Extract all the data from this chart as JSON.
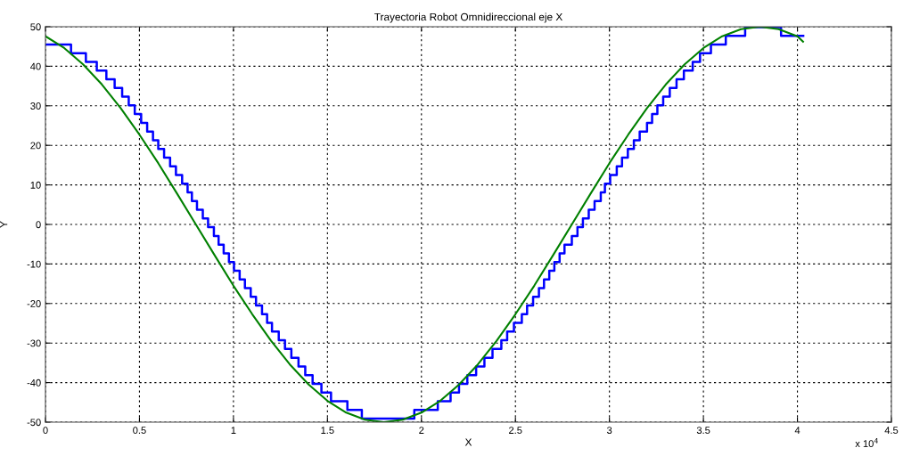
{
  "chart_data": {
    "type": "line",
    "title": "Trayectoria Robot Omnidireccional eje X",
    "xlabel": "X",
    "ylabel": "Y",
    "annotations": [
      "x 10$^{4}$"
    ],
    "xlim": [
      0,
      4.5
    ],
    "xticks": [
      0,
      0.5,
      1,
      1.5,
      2,
      2.5,
      3,
      3.5,
      4,
      4.5
    ],
    "ylim": [
      -50,
      50
    ],
    "yticks": [
      -50,
      -40,
      -30,
      -20,
      -10,
      0,
      10,
      20,
      30,
      40,
      50
    ],
    "grid": true,
    "series": [
      {
        "type": "step",
        "color": "#0000ff",
        "x": [
          0,
          0.136,
          0.215,
          0.273,
          0.324,
          0.368,
          0.408,
          0.443,
          0.475,
          0.509,
          0.541,
          0.572,
          0.6,
          0.631,
          0.663,
          0.694,
          0.727,
          0.756,
          0.779,
          0.806,
          0.837,
          0.865,
          0.896,
          0.921,
          0.948,
          0.976,
          1.003,
          1.033,
          1.061,
          1.092,
          1.12,
          1.152,
          1.179,
          1.205,
          1.241,
          1.274,
          1.308,
          1.346,
          1.382,
          1.421,
          1.468,
          1.519,
          1.606,
          1.683,
          1.962,
          2.087,
          2.155,
          2.2,
          2.244,
          2.291,
          2.335,
          2.378,
          2.425,
          2.456,
          2.492,
          2.534,
          2.562,
          2.594,
          2.625,
          2.652,
          2.68,
          2.707,
          2.735,
          2.761,
          2.8,
          2.83,
          2.859,
          2.89,
          2.921,
          2.954,
          2.976,
          3.004,
          3.039,
          3.067,
          3.098,
          3.13,
          3.161,
          3.2,
          3.227,
          3.255,
          3.286,
          3.321,
          3.357,
          3.396,
          3.443,
          3.482,
          3.54,
          3.619,
          3.722,
          3.913,
          4.031
        ],
        "values": [
          45.5,
          43.3,
          41.1,
          38.9,
          36.7,
          34.5,
          32.3,
          30.1,
          27.9,
          25.7,
          23.5,
          21.3,
          19.1,
          16.9,
          14.7,
          12.5,
          10.3,
          8.1,
          5.9,
          3.7,
          1.5,
          -0.7,
          -2.9,
          -5.1,
          -7.3,
          -9.5,
          -11.7,
          -13.9,
          -16.1,
          -18.3,
          -20.5,
          -22.7,
          -24.9,
          -27.1,
          -29.3,
          -31.5,
          -33.7,
          -35.9,
          -38.1,
          -40.3,
          -42.5,
          -44.7,
          -46.9,
          -49.1,
          -46.9,
          -44.7,
          -42.5,
          -40.3,
          -38.1,
          -35.9,
          -33.7,
          -31.5,
          -29.3,
          -27.1,
          -24.9,
          -22.7,
          -20.5,
          -18.3,
          -16.1,
          -13.9,
          -11.7,
          -9.5,
          -7.3,
          -5.1,
          -2.9,
          -0.7,
          1.5,
          3.7,
          5.9,
          8.1,
          10.3,
          12.5,
          14.7,
          16.9,
          19.1,
          21.3,
          23.5,
          25.7,
          27.9,
          30.1,
          32.3,
          34.5,
          36.7,
          38.9,
          41.1,
          43.3,
          45.5,
          47.7,
          49.9,
          47.7,
          47.7
        ]
      },
      {
        "color": "#008000",
        "x": [
          0,
          0.1,
          0.2,
          0.3,
          0.4,
          0.5,
          0.6,
          0.7,
          0.8,
          0.9,
          1.0,
          1.1,
          1.2,
          1.3,
          1.4,
          1.5,
          1.6,
          1.7,
          1.8,
          1.9,
          2.0,
          2.1,
          2.2,
          2.3,
          2.4,
          2.5,
          2.6,
          2.7,
          2.8,
          2.9,
          3.0,
          3.1,
          3.2,
          3.3,
          3.4,
          3.5,
          3.6,
          3.7,
          3.8,
          3.9,
          4.0,
          4.03
        ],
        "values": [
          47.6,
          44.6,
          40.5,
          35.4,
          29.4,
          22.7,
          15.5,
          7.8,
          0,
          -7.8,
          -15.5,
          -22.7,
          -29.4,
          -35.4,
          -40.5,
          -44.6,
          -47.6,
          -49.4,
          -50,
          -49.4,
          -47.6,
          -44.6,
          -40.5,
          -35.4,
          -29.4,
          -22.7,
          -15.5,
          -7.8,
          0,
          7.8,
          15.5,
          22.7,
          29.4,
          35.4,
          40.5,
          44.6,
          47.6,
          49.4,
          50,
          49.4,
          47.6,
          46.2
        ]
      }
    ]
  }
}
